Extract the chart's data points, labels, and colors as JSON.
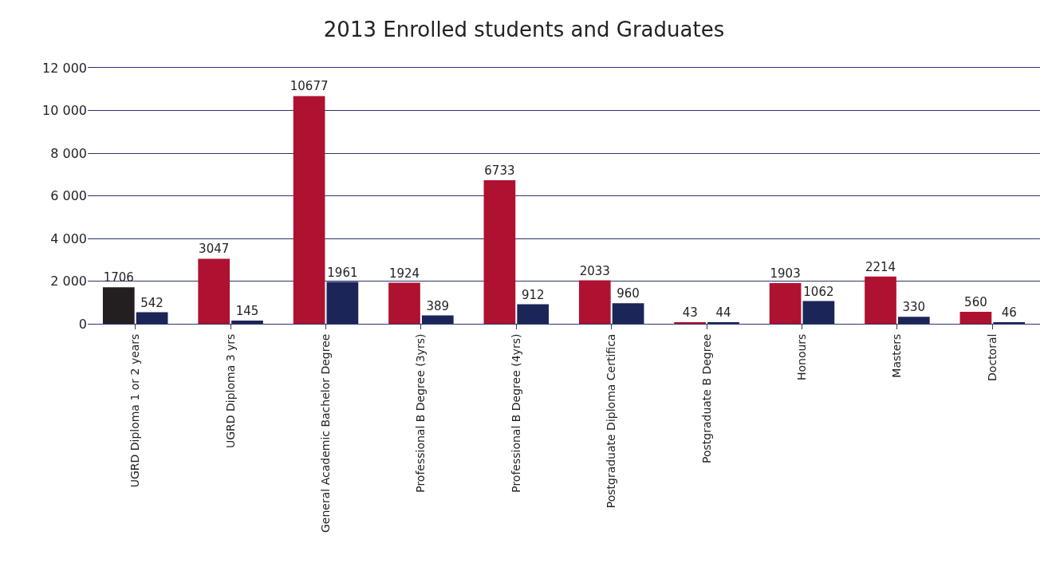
{
  "chart_data": {
    "type": "bar",
    "title": "2013 Enrolled students and Graduates",
    "categories": [
      "UGRD Diploma 1 or 2 years",
      "UGRD Diploma 3 yrs",
      "General Academic Bachelor Degree",
      "Professional B Degree (3yrs)",
      "Professional B Degree (4yrs)",
      "Postgraduate Diploma Certifica",
      "Postgraduate B Degree",
      "Honours",
      "Masters",
      "Doctoral"
    ],
    "series": [
      {
        "colors": [
          "#231f20",
          "#ae1230",
          "#ae1230",
          "#ae1230",
          "#ae1230",
          "#ae1230",
          "#ae1230",
          "#ae1230",
          "#ae1230",
          "#ae1230"
        ],
        "values": [
          1706,
          3047,
          10677,
          1924,
          6733,
          2033,
          43,
          1903,
          2214,
          560
        ]
      },
      {
        "color": "#1c2557",
        "values": [
          542,
          145,
          1961,
          389,
          912,
          960,
          44,
          1062,
          330,
          46
        ]
      }
    ],
    "ylim": [
      0,
      12000
    ],
    "yticks": [
      0,
      {
        "value": 2000,
        "label": "2 000"
      },
      {
        "value": 4000,
        "label": "4 000"
      },
      {
        "value": 6000,
        "label": "6 000"
      },
      {
        "value": 8000,
        "label": "8 000"
      },
      {
        "value": 10000,
        "label": "10 000"
      },
      {
        "value": 12000,
        "label": "12 000"
      }
    ],
    "grid": "y",
    "data_labels": true
  }
}
